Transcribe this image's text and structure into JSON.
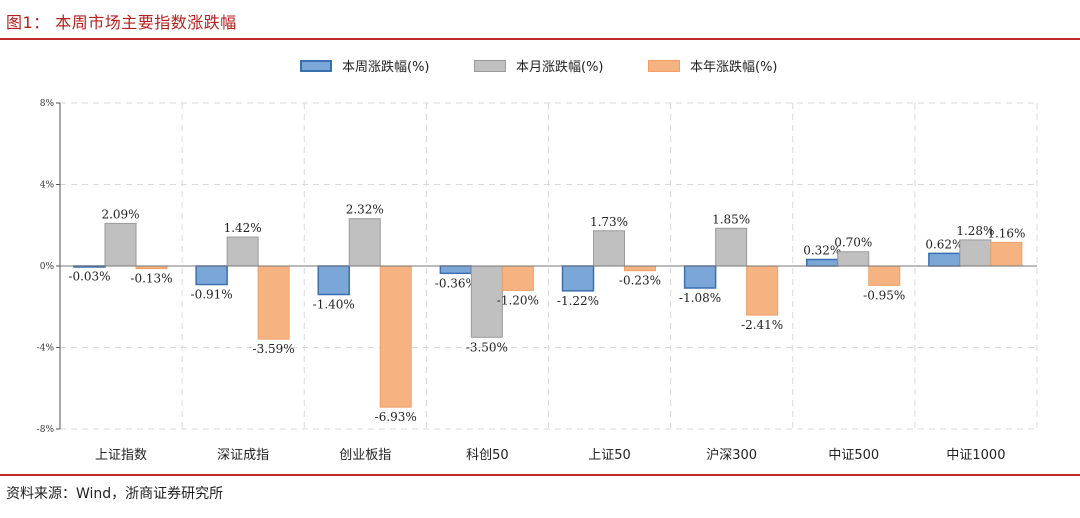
{
  "header": {
    "title": "图1：  本周市场主要指数涨跌幅"
  },
  "footer": {
    "source": "资料来源：Wind，浙商证券研究所"
  },
  "colors": {
    "accent_red": "#c0282a",
    "series_week": "#7ba7d8",
    "series_month": "#c0c0c0",
    "series_year": "#f5b382"
  },
  "chart_data": {
    "type": "bar",
    "categories": [
      "上证指数",
      "深证成指",
      "创业板指",
      "科创50",
      "上证50",
      "沪深300",
      "中证500",
      "中证1000"
    ],
    "series": [
      {
        "name": "本周涨跌幅(%)",
        "values": [
          -0.03,
          -0.91,
          -1.4,
          -0.36,
          -1.22,
          -1.08,
          0.32,
          0.62
        ],
        "labels": [
          "-0.03%",
          "-0.91%",
          "-1.40%",
          "-0.36%",
          "-1.22%",
          "-1.08%",
          "0.32%",
          "0.62%"
        ]
      },
      {
        "name": "本月涨跌幅(%)",
        "values": [
          2.09,
          1.42,
          2.32,
          -3.5,
          1.73,
          1.85,
          0.7,
          1.28
        ],
        "labels": [
          "2.09%",
          "1.42%",
          "2.32%",
          "-3.50%",
          "1.73%",
          "1.85%",
          "0.70%",
          "1.28%"
        ]
      },
      {
        "name": "本年涨跌幅(%)",
        "values": [
          -0.13,
          -3.59,
          -6.93,
          -1.2,
          -0.23,
          -2.41,
          -0.95,
          1.16
        ],
        "labels": [
          "-0.13%",
          "-3.59%",
          "-6.93%",
          "-1.20%",
          "-0.23%",
          "-2.41%",
          "-0.95%",
          "1.16%"
        ]
      }
    ],
    "ylim": [
      -8,
      8
    ],
    "yticks": [
      -8,
      -4,
      0,
      4,
      8
    ],
    "ytick_labels": [
      "-8%",
      "-4%",
      "0%",
      "4%",
      "8%"
    ],
    "grid": true,
    "legend_position": "top-center"
  }
}
